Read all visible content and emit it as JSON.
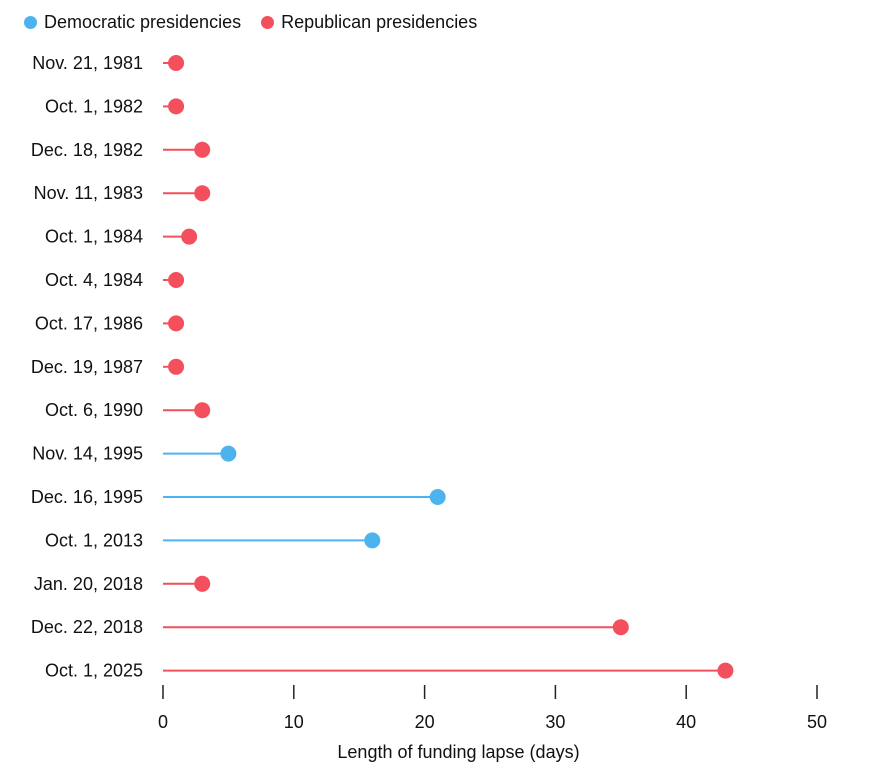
{
  "colors": {
    "democratic": "#4db3ef",
    "republican": "#f44f5c",
    "axis": "#222222"
  },
  "legend": {
    "democratic_label": "Democratic presidencies",
    "republican_label": "Republican presidencies"
  },
  "chart_data": {
    "type": "lollipop",
    "xlabel": "Length of funding lapse (days)",
    "xlim": [
      0,
      50
    ],
    "xticks": [
      0,
      10,
      20,
      30,
      40,
      50
    ],
    "grid": false,
    "legend_position": "top-left",
    "series": [
      {
        "name": "Democratic presidencies",
        "party": "democratic"
      },
      {
        "name": "Republican presidencies",
        "party": "republican"
      }
    ],
    "categories": [
      "Nov. 21, 1981",
      "Oct. 1, 1982",
      "Dec. 18, 1982",
      "Nov. 11, 1983",
      "Oct. 1, 1984",
      "Oct. 4, 1984",
      "Oct. 17, 1986",
      "Dec. 19, 1987",
      "Oct. 6, 1990",
      "Nov. 14, 1995",
      "Dec. 16, 1995",
      "Oct. 1, 2013",
      "Jan. 20, 2018",
      "Dec. 22, 2018",
      "Oct. 1, 2025"
    ],
    "values": [
      1,
      1,
      3,
      3,
      2,
      1,
      1,
      1,
      3,
      5,
      21,
      16,
      3,
      35,
      43
    ],
    "party": [
      "republican",
      "republican",
      "republican",
      "republican",
      "republican",
      "republican",
      "republican",
      "republican",
      "republican",
      "democratic",
      "democratic",
      "democratic",
      "republican",
      "republican",
      "republican"
    ]
  }
}
